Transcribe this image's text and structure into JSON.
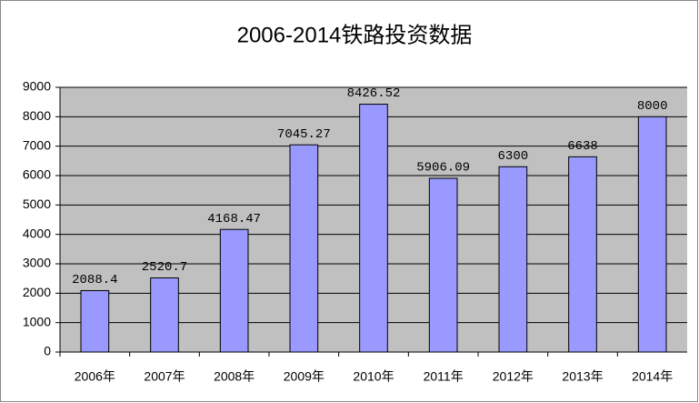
{
  "chart_data": {
    "type": "bar",
    "title": "2006-2014铁路投资数据",
    "categories": [
      "2006年",
      "2007年",
      "2008年",
      "2009年",
      "2010年",
      "2011年",
      "2012年",
      "2013年",
      "2014年"
    ],
    "values": [
      2088.4,
      2520.7,
      4168.47,
      7045.27,
      8426.52,
      5906.09,
      6300,
      6638,
      8000
    ],
    "color": "#9999ff",
    "ylim": [
      0,
      9000
    ],
    "yticks": [
      0,
      1000,
      2000,
      3000,
      4000,
      5000,
      6000,
      7000,
      8000,
      9000
    ],
    "grid": true
  }
}
